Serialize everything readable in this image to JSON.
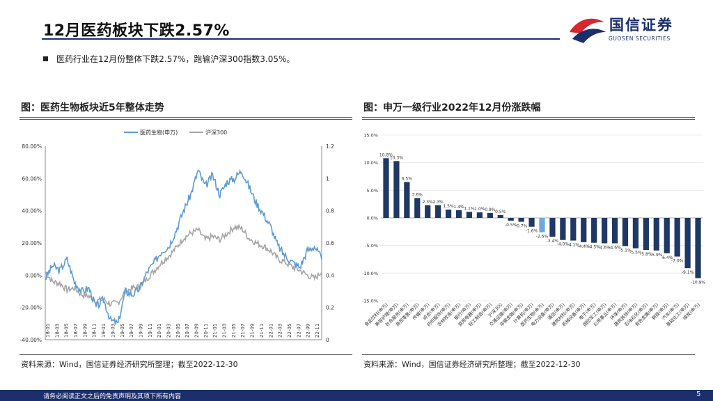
{
  "header": {
    "title": "12月医药板块下跌2.57%"
  },
  "logo": {
    "name_cn": "国信证券",
    "name_en": "GUOSEN SECURITIES"
  },
  "summary": {
    "bullet": "医药行业在12月份整体下跌2.57%，跑输沪深300指数3.05%。"
  },
  "left_panel": {
    "title": "图：医药生物板块近5年整体走势",
    "source": "资料来源：Wind，国信证券经济研究所整理；截至2022-12-30"
  },
  "right_panel": {
    "title": "图：申万一级行业2022年12月份涨跌幅",
    "source": "资料来源：Wind，国信证券经济研究所整理；截至2022-12-30"
  },
  "footer": {
    "disclaimer": "请务必阅读正文之后的免责声明及其项下所有内容",
    "page": "5"
  },
  "colors": {
    "navy": "#1a2f6b",
    "blue_line": "#5b9bd5",
    "gray_line": "#a5a5a5",
    "bar_navy": "#1f3864",
    "bar_light": "#6fa8dc",
    "logo_red": "#d7262e"
  },
  "chart_data": [
    {
      "type": "line",
      "title": "",
      "series": [
        {
          "name": "医药生物(申万)",
          "axis": "left",
          "color": "#5b9bd5",
          "values": [
            -2,
            6,
            3,
            10,
            -4,
            -10,
            -8,
            -20,
            -15,
            -28,
            -30,
            -10,
            -12,
            -8,
            2,
            8,
            15,
            18,
            28,
            40,
            50,
            65,
            55,
            62,
            50,
            58,
            60,
            65,
            55,
            45,
            38,
            30,
            18,
            12,
            8,
            5,
            15,
            18,
            10
          ]
        },
        {
          "name": "沪深300",
          "axis": "right",
          "color": "#a5a5a5",
          "values": [
            0.42,
            0.36,
            0.35,
            0.31,
            0.32,
            0.28,
            0.27,
            0.24,
            0.25,
            0.22,
            0.23,
            0.3,
            0.32,
            0.33,
            0.38,
            0.43,
            0.48,
            0.52,
            0.57,
            0.63,
            0.66,
            0.68,
            0.62,
            0.64,
            0.62,
            0.66,
            0.7,
            0.69,
            0.63,
            0.6,
            0.58,
            0.55,
            0.5,
            0.48,
            0.45,
            0.43,
            0.4,
            0.38,
            0.42
          ]
        }
      ],
      "y_left_ticks": [
        "80.00%",
        "60.00%",
        "40.00%",
        "20.00%",
        "0.00%",
        "-20.00%",
        "-40.00%"
      ],
      "ylim_left": [
        -40,
        80
      ],
      "y_right_ticks": [
        "1.2",
        "1",
        "0.8",
        "0.6",
        "0.4",
        "0.2",
        "0"
      ],
      "ylim_right": [
        0,
        1.2
      ],
      "x_tick_labels": [
        "18-01",
        "18-03",
        "18-05",
        "18-07",
        "18-09",
        "18-11",
        "19-01",
        "19-03",
        "19-05",
        "19-07",
        "19-09",
        "19-11",
        "20-01",
        "20-03",
        "20-05",
        "20-07",
        "20-09",
        "20-11",
        "21-01",
        "21-03",
        "21-05",
        "21-07",
        "21-09",
        "21-11",
        "22-01",
        "22-03",
        "22-05",
        "22-07",
        "22-09",
        "22-11"
      ],
      "legend": "top-center"
    },
    {
      "type": "bar",
      "title": "",
      "ylim": [
        -15,
        15
      ],
      "y_ticks": [
        "15.0%",
        "10.0%",
        "5.0%",
        "0.0%",
        "-5.0%",
        "-10.0%",
        "-15.0%"
      ],
      "highlight_category": "医药生物(申万)",
      "categories": [
        "食品饮料(申万)",
        "美容护理(申万)",
        "社会服务(申万)",
        "商贸零售(申万)",
        "传媒(申万)",
        "综合(申万)",
        "纺织服饰(申万)",
        "农林牧渔(申万)",
        "银行(申万)",
        "家用电器(申万)",
        "轻工制造(申万)",
        "沪深300",
        "交通运输(申万)",
        "非银金融(申万)",
        "计算机(申万)",
        "医药生物(申万)",
        "电力设备(申万)",
        "通信(申万)",
        "建筑材料(申万)",
        "机械设备(申万)",
        "电子(申万)",
        "国防军工(申万)",
        "公用事业(申万)",
        "环保(申万)",
        "建筑装饰(申万)",
        "石油石化(申万)",
        "有色金属(申万)",
        "钢铁(申万)",
        "汽车(申万)",
        "基础化工(申万)",
        "煤炭(申万)"
      ],
      "values": [
        10.8,
        10.3,
        6.5,
        3.6,
        2.3,
        2.3,
        1.5,
        1.4,
        1.1,
        1.0,
        0.9,
        0.5,
        -0.5,
        -0.7,
        -1.6,
        -2.6,
        -3.4,
        -4.0,
        -4.1,
        -4.4,
        -4.5,
        -4.6,
        -4.6,
        -5.1,
        -5.5,
        -5.8,
        -5.9,
        -6.4,
        -7.0,
        -9.1,
        -10.9
      ],
      "data_labels": [
        "10.8%",
        "10.3%",
        "6.5%",
        "3.6%",
        "2.3%",
        "2.3%",
        "1.5%",
        "1.4%",
        "1.1%",
        "1.0%",
        "0.9%",
        "0.5%",
        "-0.5%",
        "-0.7%",
        "-1.6%",
        "-2.6%",
        "-3.4%",
        "-4.0%",
        "-4.1%",
        "-4.4%",
        "-4.5%",
        "-4.6%",
        "-4.6%",
        "-5.1%",
        "-5.5%",
        "-5.8%",
        "-5.9%",
        "-6.4%",
        "-7.0%",
        "-9.1%",
        "-10.9%"
      ]
    }
  ]
}
